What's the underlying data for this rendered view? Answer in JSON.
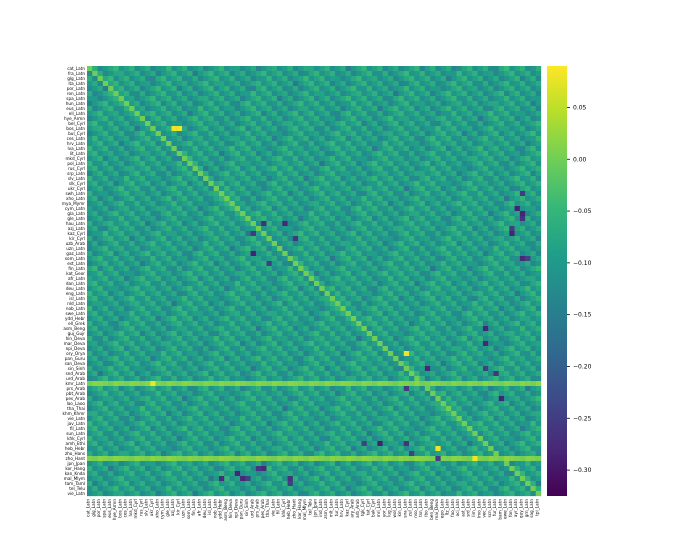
{
  "chart_data": {
    "type": "heatmap",
    "title": "",
    "xlabel": "",
    "ylabel": "",
    "labels": [
      "cat_Latn",
      "fra_Latn",
      "glg_Latn",
      "ita_Latn",
      "por_Latn",
      "ron_Latn",
      "spa_Latn",
      "hun_Latn",
      "eus_Latn",
      "ell_Latn",
      "hye_Armn",
      "bel_Cyrl",
      "bos_Latn",
      "bul_Cyrl",
      "ces_Latn",
      "hrv_Latn",
      "lva_Latn",
      "lit_Latn",
      "mkd_Cyrl",
      "pol_Latn",
      "rus_Cyrl",
      "srp_Latn",
      "slv_Latn",
      "slk_Cyrl",
      "ukr_Cyrl",
      "swh_Latn",
      "xho_Latn",
      "mya_Mymr",
      "cym_Latn",
      "gla_Latn",
      "gle_Latn",
      "hau_Latn",
      "azj_Latn",
      "kaz_Cyrl",
      "kir_Cyrl",
      "uzb_Arab",
      "uzn_Latn",
      "gaz_Latn",
      "som_Latn",
      "est_Latn",
      "fin_Latn",
      "kat_Geor",
      "afr_Latn",
      "dan_Latn",
      "deu_Latn",
      "eng_Latn",
      "isl_Latn",
      "nld_Latn",
      "nob_Latn",
      "swe_Latn",
      "ydd_Hebr",
      "ell_Grek",
      "asm_Beng",
      "guj_Gujr",
      "hin_Deva",
      "mar_Deva",
      "npi_Deva",
      "ory_Orya",
      "pan_Guru",
      "san_Deva",
      "sin_Sinh",
      "snd_Arab",
      "urd_Arab",
      "kmr_Latn",
      "prs_Arab",
      "pbt_Arab",
      "pes_Arab",
      "lao_Laoo",
      "tha_Thai",
      "khm_Khmr",
      "vie_Latn",
      "jav_Latn",
      "fil_Latn",
      "sun_Latn",
      "khk_Cyrl",
      "amh_Ethi",
      "heb_Hebr",
      "zho_Hans",
      "zho_Hant",
      "jpn_Jpan",
      "kor_Hang",
      "kan_Knda",
      "mal_Mlym",
      "tam_Taml",
      "tel_Telu",
      "vie_Latn"
    ],
    "x_tick_labels": [
      "cat_Latn",
      "glg_Latn",
      "por_Latn",
      "spa_Latn",
      "eus_Latn",
      "hye_Armn",
      "bos_Latn",
      "ces_Latn",
      "lva_Latn",
      "mkd_Cyrl",
      "rus_Cyrl",
      "slv_Latn",
      "ukr_Cyrl",
      "xho_Latn",
      "cym_Latn",
      "gle_Latn",
      "azj_Latn",
      "kir_Cyrl",
      "uzn_Latn",
      "som_Latn",
      "fin_Latn",
      "afr_Latn",
      "deu_Latn",
      "isl_Latn",
      "nob_Latn",
      "ydd_Hebr",
      "asm_Beng",
      "hin_Deva",
      "npi_Deva",
      "pan_Guru",
      "sin_Sinh",
      "urd_Arab",
      "prs_Arab",
      "pes_Arab",
      "tha_Thai",
      "vie_Latn",
      "fil_Latn",
      "khk_Cyrl",
      "heb_Hebr",
      "zho_Hant",
      "kor_Hang",
      "mal_Mlym",
      "tel_Telu",
      "jpn_Jpan",
      "ind_Latn",
      "zsm_Latn",
      "mlt_Latn",
      "tur_Latn",
      "hrv_Latn",
      "kaz_Cyrl",
      "ary_Arab",
      "arb_Arab",
      "tgk_Cyrl",
      "tat_Cyrl",
      "bak_Cyrl",
      "mri_Latn",
      "yor_Latn",
      "lug_Latn",
      "wol_Latn",
      "kin_Latn",
      "sna_Latn",
      "zul_Latn",
      "nso_Latn",
      "tsn_Latn",
      "ibo_Latn",
      "ben_Beng",
      "mai_Deva",
      "epo_Latn",
      "ltz_Latn",
      "fao_Latn",
      "oci_Latn",
      "ast_Latn",
      "srd_Latn",
      "lim_Latn",
      "lmo_Latn",
      "vec_Latn",
      "scn_Latn",
      "fur_Latn",
      "bam_Latn",
      "ewe_Latn",
      "fon_Latn",
      "ayr_Latn",
      "quy_Latn",
      "grn_Latn",
      "sag_Latn",
      "tpi_Latn"
    ],
    "colorbar": {
      "ticks": [
        0.05,
        0.0,
        -0.05,
        -0.1,
        -0.15,
        -0.2,
        -0.25,
        -0.3
      ],
      "tick_labels": [
        "0.05",
        "0.00",
        "−0.05",
        "−0.10",
        "−0.15",
        "−0.20",
        "−0.25",
        "−0.30"
      ],
      "vmin": -0.325,
      "vmax": 0.09,
      "colormap": "viridis"
    },
    "diagonal_value": 0.0,
    "typical_offdiag": -0.09,
    "strong_negative_cells": [
      [
        29,
        82
      ],
      [
        30,
        82
      ],
      [
        32,
        80
      ],
      [
        33,
        80
      ],
      [
        38,
        82
      ],
      [
        38,
        83
      ],
      [
        25,
        82
      ],
      [
        28,
        81
      ],
      [
        33,
        31
      ],
      [
        37,
        31
      ],
      [
        39,
        34
      ],
      [
        52,
        75
      ],
      [
        55,
        75
      ],
      [
        60,
        75
      ],
      [
        61,
        77
      ],
      [
        64,
        60
      ],
      [
        66,
        78
      ]
    ],
    "highlight_cells": [
      [
        12,
        16
      ],
      [
        12,
        17
      ],
      [
        63,
        12
      ],
      [
        57,
        60
      ],
      [
        76,
        66
      ],
      [
        78,
        73
      ]
    ],
    "highlight_rows": [
      63,
      78
    ],
    "highlight_row_value": 0.02
  }
}
